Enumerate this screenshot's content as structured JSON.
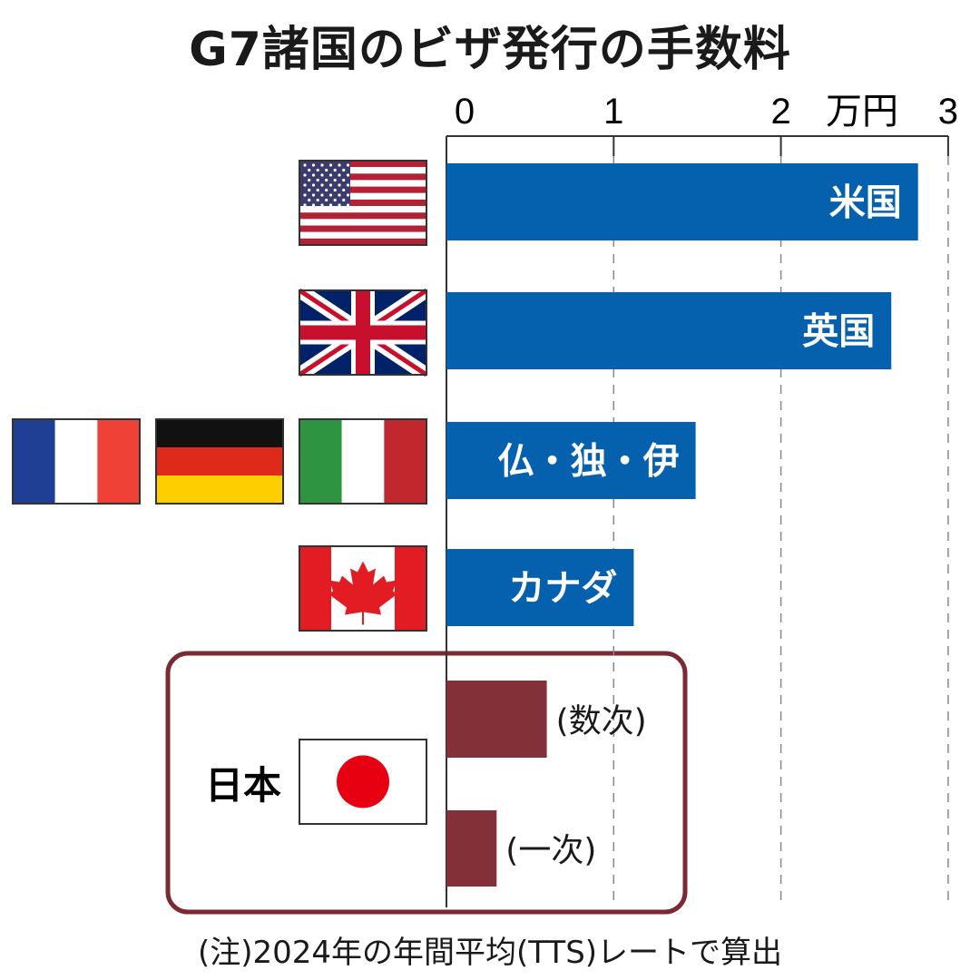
{
  "chart_data": {
    "type": "bar",
    "orientation": "horizontal",
    "title": "G7諸国のビザ発行の手数料",
    "unit": "万円",
    "xlim": [
      0,
      3
    ],
    "ticks": [
      "0",
      "1",
      "2",
      "3"
    ],
    "grid": true,
    "categories": [
      "米国",
      "英国",
      "仏・独・伊",
      "カナダ",
      "(数次)",
      "(一次)"
    ],
    "values": [
      2.82,
      2.66,
      1.49,
      1.12,
      0.6,
      0.3
    ],
    "group_label": "日本",
    "colors": {
      "others": "#0560ae",
      "japan": "#843038",
      "japan_box": "#7a2a33"
    },
    "flags": [
      "usa",
      "uk",
      "france",
      "germany",
      "italy",
      "canada",
      "japan"
    ],
    "note": "(注)2024年の年間平均(TTS)レートで算出"
  }
}
